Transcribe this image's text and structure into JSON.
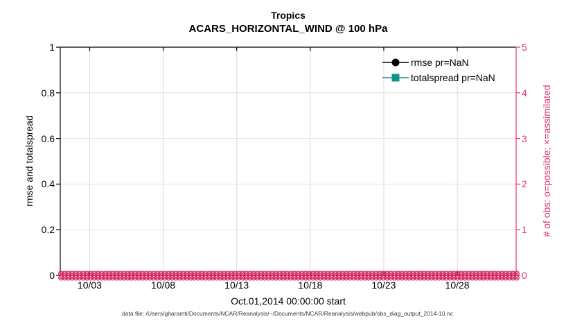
{
  "chart_data": {
    "type": "line",
    "title": "Tropics",
    "subtitle": "ACARS_HORIZONTAL_WIND @ 100 hPa",
    "xlabel": "Oct.01,2014 00:00:00 start",
    "ylabel_left": "rmse and totalspread",
    "ylabel_right": "# of obs: o=possible; ×=assimilated",
    "x_tick_labels": [
      "10/03",
      "10/08",
      "10/13",
      "10/18",
      "10/23",
      "10/28"
    ],
    "x_tick_day_offsets": [
      2,
      7,
      12,
      17,
      22,
      27
    ],
    "x_span_days": 31,
    "y_left_ticks": [
      "0",
      "0.2",
      "0.4",
      "0.6",
      "0.8",
      "1"
    ],
    "y_left_range": [
      0,
      1
    ],
    "y_right_ticks": [
      "0",
      "1",
      "2",
      "3",
      "4",
      "5"
    ],
    "y_right_range": [
      0,
      5
    ],
    "grid": true,
    "legend_position": "top-right-inside",
    "series": [
      {
        "name": "rmse pr=NaN",
        "color": "#000000",
        "marker": "filled-circle",
        "values": "NaN"
      },
      {
        "name": "totalspread pr=NaN",
        "color": "#119490",
        "marker": "filled-square",
        "values": "NaN"
      },
      {
        "name": "possible obs (o)",
        "color": "#d92b63",
        "marker": "open-circle",
        "constant_value": 0,
        "n_points": 124
      },
      {
        "name": "assimilated obs (x)",
        "color": "#d92b63",
        "marker": "x",
        "constant_value": 0,
        "n_points": 124
      }
    ],
    "caption": "data file: /Users/gharamti/Documents/NCAR/Reanalysis/~/Documents/NCAR/Reanalysis/webpub/obs_diag_output_2014-10.nc"
  },
  "colors": {
    "axis_left": "#000000",
    "axis_right": "#e23a6d",
    "obs_marker": "#d92b63",
    "grid_horizontal": "#f6d7e2",
    "grid_vertical": "#dcdcdc",
    "rmse": "#000000",
    "totalspread": "#119490",
    "caption_text": "#3a3a3a"
  }
}
